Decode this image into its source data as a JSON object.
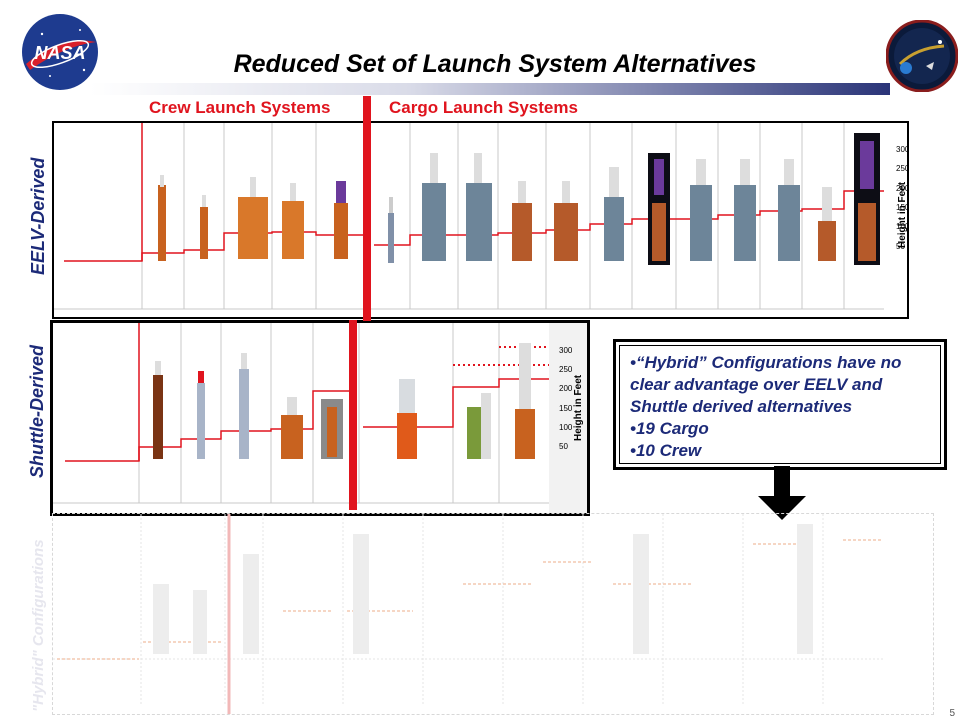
{
  "title": "Reduced Set of Launch System Alternatives",
  "nasa_logo": {
    "text": "NASA"
  },
  "section_labels": {
    "crew": "Crew Launch Systems",
    "cargo": "Cargo Launch Systems"
  },
  "row_labels": {
    "eelv": "EELV-Derived",
    "shuttle": "Shuttle-Derived",
    "hybrid": "\"Hybrid\" Configurations"
  },
  "axis": {
    "label": "Height in Feet",
    "ticks": [
      "300",
      "250",
      "200",
      "150",
      "100",
      "50"
    ]
  },
  "callout": {
    "lines": [
      "•“Hybrid” Configurations have no",
      "clear advantage over EELV and",
      "Shuttle derived alternatives",
      "•19 Cargo",
      "•10 Crew"
    ]
  },
  "page_number": "5",
  "colors": {
    "accent_red": "#e0141e",
    "label_blue": "#1c2a78",
    "title_bar": "#2a3478"
  }
}
